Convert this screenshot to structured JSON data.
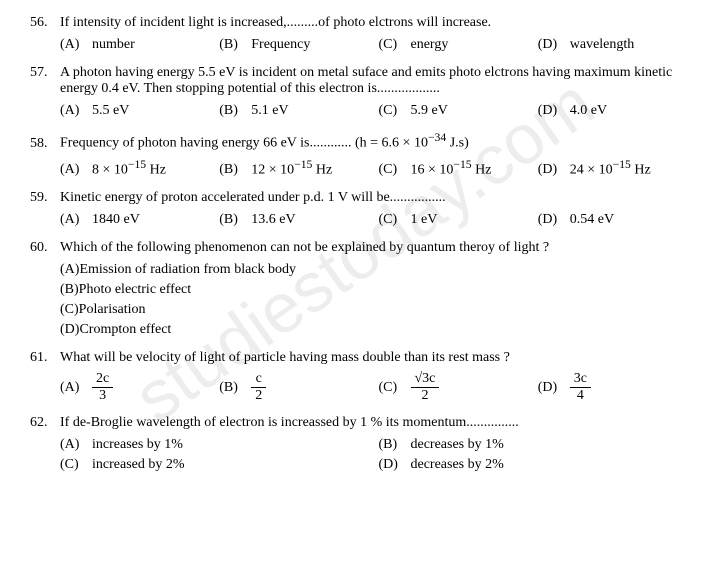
{
  "watermark": "studiestoday.com",
  "questions": [
    {
      "num": "56.",
      "text": "If intensity of incident light is increased,.........of photo elctrons will increase.",
      "layout": "opt4",
      "opts": [
        {
          "l": "(A)",
          "t": "number"
        },
        {
          "l": "(B)",
          "t": "Frequency"
        },
        {
          "l": "(C)",
          "t": "energy"
        },
        {
          "l": "(D)",
          "t": "wavelength"
        }
      ]
    },
    {
      "num": "57.",
      "text": "A photon having energy 5.5 eV is incident on metal suface and emits photo elctrons having maximum kinetic energy 0.4 eV. Then stopping potential of this electron is..................",
      "layout": "opt4",
      "opts": [
        {
          "l": "(A)",
          "t": "5.5 eV"
        },
        {
          "l": "(B)",
          "t": "5.1 eV"
        },
        {
          "l": "(C)",
          "t": "5.9 eV"
        },
        {
          "l": "(D)",
          "t": "4.0 eV"
        }
      ]
    },
    {
      "num": "58.",
      "text_html": "Frequency of photon having energy 66 eV is............ (h = 6.6 × 10<sup>−34</sup> J.s)",
      "layout": "opt4",
      "opts": [
        {
          "l": "(A)",
          "html": "8 × 10<sup>−15</sup> Hz"
        },
        {
          "l": "(B)",
          "html": "12 × 10<sup>−15</sup> Hz"
        },
        {
          "l": "(C)",
          "html": "16 × 10<sup>−15</sup> Hz"
        },
        {
          "l": "(D)",
          "html": "24 × 10<sup>−15</sup> Hz"
        }
      ]
    },
    {
      "num": "59.",
      "text": "Kinetic energy of proton accelerated under p.d. 1 V will be................",
      "layout": "opt4",
      "opts": [
        {
          "l": "(A)",
          "t": "1840 eV"
        },
        {
          "l": "(B)",
          "t": "13.6 eV"
        },
        {
          "l": "(C)",
          "t": "1 eV"
        },
        {
          "l": "(D)",
          "t": "0.54 eV"
        }
      ]
    },
    {
      "num": "60.",
      "text": "Which of the following phenomenon can not be explained by quantum theroy of light ?",
      "layout": "opt1",
      "opts": [
        {
          "l": "(A)",
          "t": "Emission of radiation from black body"
        },
        {
          "l": "(B)",
          "t": "Photo electric effect"
        },
        {
          "l": "(C)",
          "t": "Polarisation"
        },
        {
          "l": "(D)",
          "t": "Crompton effect"
        }
      ]
    },
    {
      "num": "61.",
      "text": "What will be velocity of light of particle having mass double than its rest mass ?",
      "layout": "opt4",
      "opts": [
        {
          "l": "(A)",
          "frac": {
            "num": "2c",
            "den": "3"
          }
        },
        {
          "l": "(B)",
          "frac": {
            "num": "c",
            "den": "2"
          }
        },
        {
          "l": "(C)",
          "frac": {
            "num": "√3c",
            "den": "2"
          }
        },
        {
          "l": "(D)",
          "frac": {
            "num": "3c",
            "den": "4"
          }
        }
      ]
    },
    {
      "num": "62.",
      "text": "If de-Broglie wavelength of electron is increassed by 1 % its momentum...............",
      "layout": "opt2",
      "rows": [
        [
          {
            "l": "(A)",
            "t": "increases by 1%"
          },
          {
            "l": "(B)",
            "t": "decreases by 1%"
          }
        ],
        [
          {
            "l": "(C)",
            "t": "increased by 2%"
          },
          {
            "l": "(D)",
            "t": "decreases by 2%"
          }
        ]
      ]
    }
  ]
}
